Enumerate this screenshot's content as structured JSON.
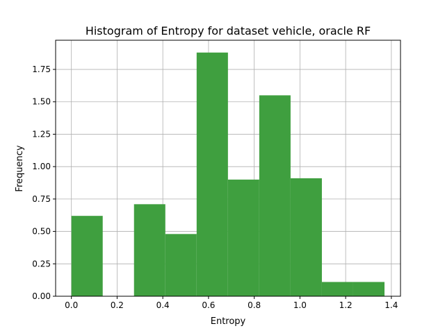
{
  "chart_data": {
    "type": "bar",
    "title": "Histogram of Entropy for dataset vehicle, oracle RF",
    "xlabel": "Entropy",
    "ylabel": "Frequency",
    "xlim": [
      -0.069,
      1.44
    ],
    "ylim": [
      0,
      1.975
    ],
    "grid": true,
    "bar_color": "#3f9f3f",
    "bins": [
      {
        "start": 0.0,
        "end": 0.137,
        "value": 0.62
      },
      {
        "start": 0.137,
        "end": 0.274,
        "value": 0.0
      },
      {
        "start": 0.274,
        "end": 0.411,
        "value": 0.71
      },
      {
        "start": 0.411,
        "end": 0.548,
        "value": 0.48
      },
      {
        "start": 0.548,
        "end": 0.685,
        "value": 1.88
      },
      {
        "start": 0.685,
        "end": 0.822,
        "value": 0.9
      },
      {
        "start": 0.822,
        "end": 0.959,
        "value": 1.55
      },
      {
        "start": 0.959,
        "end": 1.096,
        "value": 0.91
      },
      {
        "start": 1.096,
        "end": 1.233,
        "value": 0.11
      },
      {
        "start": 1.233,
        "end": 1.37,
        "value": 0.11
      }
    ],
    "xticks": [
      0.0,
      0.2,
      0.4,
      0.6,
      0.8,
      1.0,
      1.2,
      1.4
    ],
    "xtick_labels": [
      "0.0",
      "0.2",
      "0.4",
      "0.6",
      "0.8",
      "1.0",
      "1.2",
      "1.4"
    ],
    "yticks": [
      0.0,
      0.25,
      0.5,
      0.75,
      1.0,
      1.25,
      1.5,
      1.75
    ],
    "ytick_labels": [
      "0.00",
      "0.25",
      "0.50",
      "0.75",
      "1.00",
      "1.25",
      "1.50",
      "1.75"
    ]
  }
}
